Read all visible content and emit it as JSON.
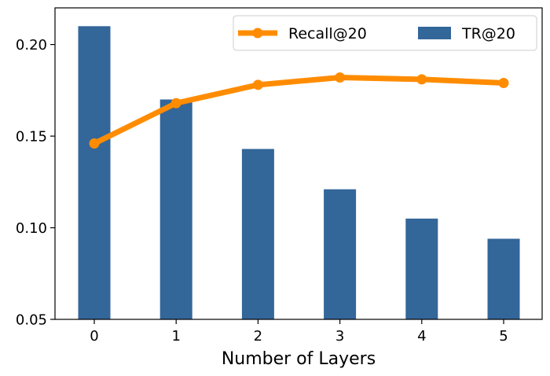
{
  "chart_data": {
    "type": "bar",
    "categories": [
      "0",
      "1",
      "2",
      "3",
      "4",
      "5"
    ],
    "xlabel": "Number of Layers",
    "ylabel": "",
    "title": "",
    "ylim": [
      0.05,
      0.22
    ],
    "yticks": [
      "0.05",
      "0.10",
      "0.15",
      "0.20"
    ],
    "grid": false,
    "legend_position": "top-right",
    "series": [
      {
        "name": "Recall@20",
        "kind": "line",
        "color": "#ff8c00",
        "values": [
          0.146,
          0.168,
          0.178,
          0.182,
          0.181,
          0.179
        ]
      },
      {
        "name": "TR@20",
        "kind": "bar",
        "color": "#336699",
        "values": [
          0.21,
          0.17,
          0.143,
          0.121,
          0.105,
          0.094
        ]
      }
    ]
  }
}
